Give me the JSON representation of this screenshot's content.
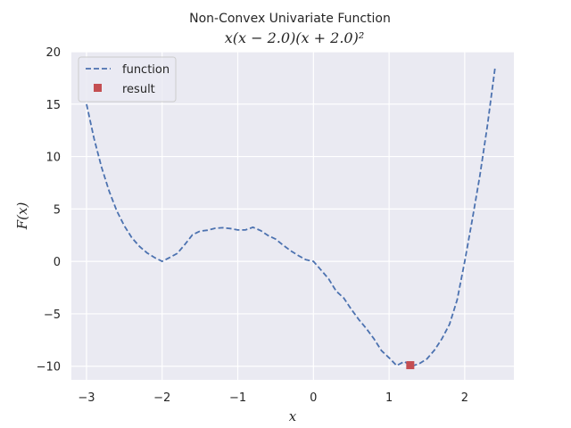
{
  "chart_data": {
    "type": "line",
    "title": "Non-Convex Univariate Function",
    "subtitle": "x(x − 2.0)(x + 2.0)²",
    "xlabel": "x",
    "ylabel": "F(x)",
    "xlim": [
      -3.2,
      2.65
    ],
    "ylim": [
      -11.3,
      20
    ],
    "xticks": [
      -3,
      -2,
      -1,
      0,
      1,
      2
    ],
    "xtick_labels": [
      "−3",
      "−2",
      "−1",
      "0",
      "1",
      "2"
    ],
    "yticks": [
      -10,
      -5,
      0,
      5,
      10,
      15,
      20
    ],
    "ytick_labels": [
      "−10",
      "−5",
      "0",
      "5",
      "10",
      "15",
      "20"
    ],
    "grid": true,
    "background": "#eaeaf2",
    "grid_color": "#ffffff",
    "legend": {
      "placement": "top-left",
      "entries": [
        "function",
        "result"
      ]
    },
    "series": [
      {
        "name": "function",
        "style": "dashed-line",
        "color": "#4c72b0",
        "x": [
          -3.0,
          -2.9,
          -2.8,
          -2.7,
          -2.6,
          -2.5,
          -2.4,
          -2.3,
          -2.2,
          -2.1,
          -2.0,
          -1.9,
          -1.8,
          -1.7,
          -1.6,
          -1.5,
          -1.4,
          -1.3,
          -1.2,
          -1.1,
          -1.0,
          -0.9,
          -0.8,
          -0.7,
          -0.6,
          -0.5,
          -0.4,
          -0.3,
          -0.2,
          -0.1,
          0.0,
          0.1,
          0.2,
          0.3,
          0.4,
          0.5,
          0.6,
          0.7,
          0.8,
          0.9,
          1.0,
          1.1,
          1.2,
          1.3,
          1.4,
          1.5,
          1.6,
          1.7,
          1.8,
          1.9,
          2.0,
          2.1,
          2.2,
          2.3,
          2.4
        ],
        "y": [
          15.0,
          11.72,
          8.96,
          6.68,
          4.82,
          3.38,
          2.25,
          1.43,
          0.81,
          0.36,
          0.0,
          0.37,
          0.76,
          1.61,
          2.54,
          2.89,
          2.97,
          3.16,
          3.21,
          3.13,
          3.0,
          3.0,
          3.25,
          2.95,
          2.47,
          2.13,
          1.54,
          1.01,
          0.56,
          0.16,
          0.0,
          -0.82,
          -1.66,
          -2.84,
          -3.48,
          -4.56,
          -5.55,
          -6.42,
          -7.38,
          -8.52,
          -9.2,
          -9.94,
          -9.56,
          -10.0,
          -9.75,
          -9.3,
          -8.46,
          -7.35,
          -5.98,
          -3.67,
          0.0,
          4.01,
          8.14,
          12.95,
          18.43
        ]
      },
      {
        "name": "result",
        "style": "square-marker",
        "color": "#c44e52",
        "x": [
          1.28
        ],
        "y": [
          -9.9
        ]
      }
    ]
  }
}
